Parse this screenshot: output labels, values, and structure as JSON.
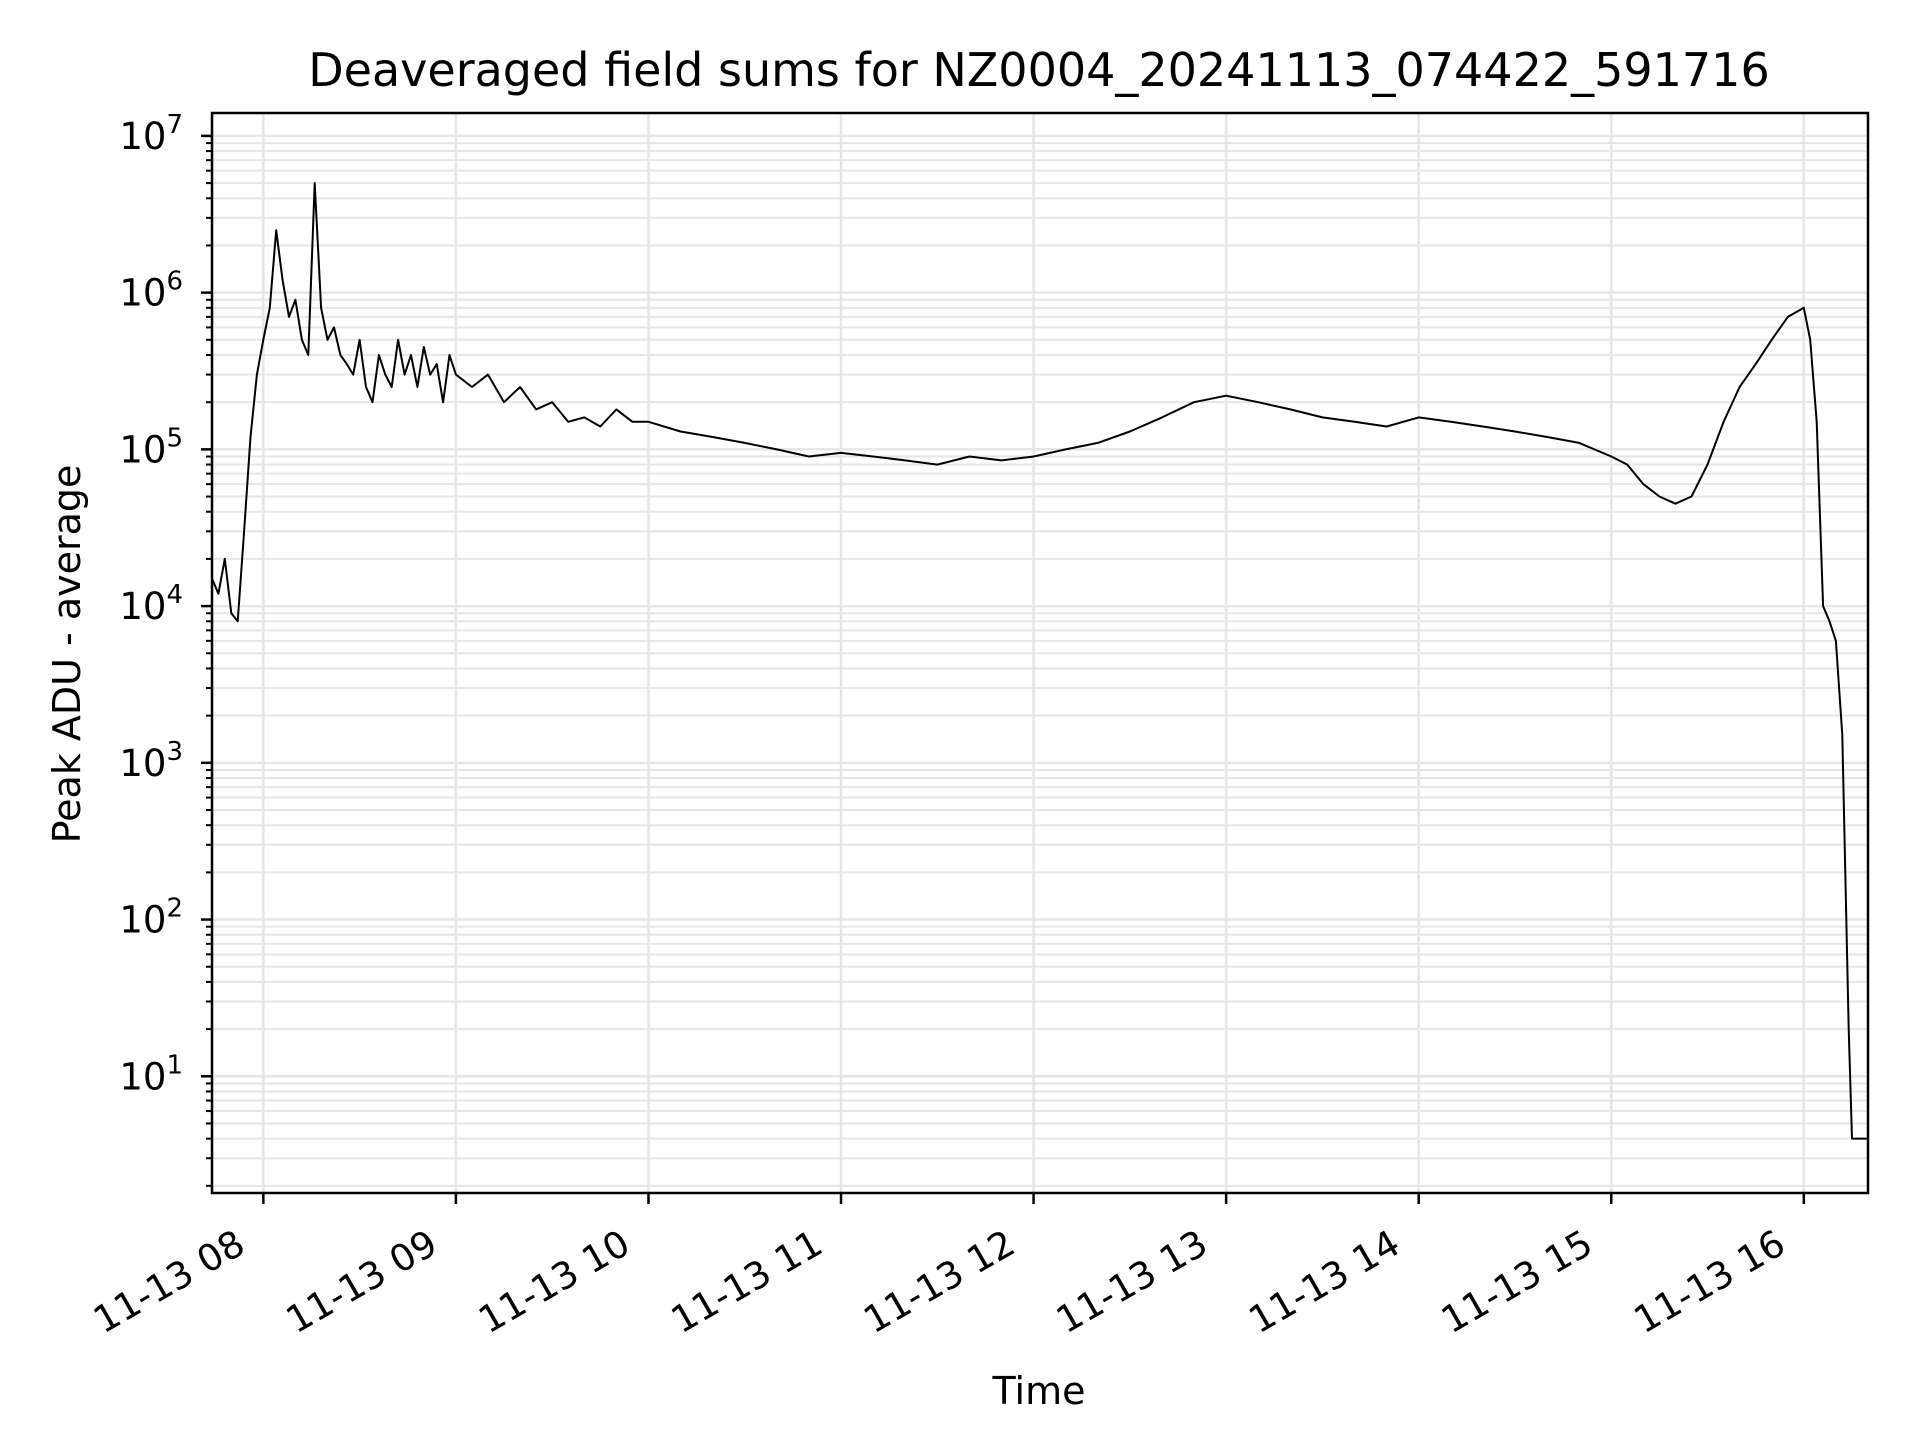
{
  "chart_data": {
    "type": "line",
    "title": "Deaveraged field sums for NZ0004_20241113_074422_591716",
    "xlabel": "Time",
    "ylabel": "Peak ADU - average",
    "yscale": "log",
    "ylim": [
      1.8,
      14000000
    ],
    "xlim": [
      "2024-11-13 07:44",
      "2024-11-13 16:20"
    ],
    "y_ticks": [
      {
        "value": 10,
        "base": "10",
        "exp": "1"
      },
      {
        "value": 100,
        "base": "10",
        "exp": "2"
      },
      {
        "value": 1000,
        "base": "10",
        "exp": "3"
      },
      {
        "value": 10000,
        "base": "10",
        "exp": "4"
      },
      {
        "value": 100000,
        "base": "10",
        "exp": "5"
      },
      {
        "value": 1000000,
        "base": "10",
        "exp": "6"
      },
      {
        "value": 10000000,
        "base": "10",
        "exp": "7"
      }
    ],
    "x_ticks": [
      {
        "value": "2024-11-13 08:00",
        "label": "11-13 08"
      },
      {
        "value": "2024-11-13 09:00",
        "label": "11-13 09"
      },
      {
        "value": "2024-11-13 10:00",
        "label": "11-13 10"
      },
      {
        "value": "2024-11-13 11:00",
        "label": "11-13 11"
      },
      {
        "value": "2024-11-13 12:00",
        "label": "11-13 12"
      },
      {
        "value": "2024-11-13 13:00",
        "label": "11-13 13"
      },
      {
        "value": "2024-11-13 14:00",
        "label": "11-13 14"
      },
      {
        "value": "2024-11-13 15:00",
        "label": "11-13 15"
      },
      {
        "value": "2024-11-13 16:00",
        "label": "11-13 16"
      }
    ],
    "grid": true,
    "legend": "none",
    "colors": {
      "line": "#000000",
      "grid": "#e6e6e6",
      "axes": "#000000"
    },
    "series": [
      {
        "x": [
          "2024-11-13 07:44",
          "2024-11-13 07:46",
          "2024-11-13 07:48",
          "2024-11-13 07:50",
          "2024-11-13 07:52",
          "2024-11-13 07:54",
          "2024-11-13 07:56",
          "2024-11-13 07:58",
          "2024-11-13 08:00",
          "2024-11-13 08:02",
          "2024-11-13 08:04",
          "2024-11-13 08:06",
          "2024-11-13 08:08",
          "2024-11-13 08:10",
          "2024-11-13 08:12",
          "2024-11-13 08:14",
          "2024-11-13 08:16",
          "2024-11-13 08:18",
          "2024-11-13 08:20",
          "2024-11-13 08:22",
          "2024-11-13 08:24",
          "2024-11-13 08:26",
          "2024-11-13 08:28",
          "2024-11-13 08:30",
          "2024-11-13 08:32",
          "2024-11-13 08:34",
          "2024-11-13 08:36",
          "2024-11-13 08:38",
          "2024-11-13 08:40",
          "2024-11-13 08:42",
          "2024-11-13 08:44",
          "2024-11-13 08:46",
          "2024-11-13 08:48",
          "2024-11-13 08:50",
          "2024-11-13 08:52",
          "2024-11-13 08:54",
          "2024-11-13 08:56",
          "2024-11-13 08:58",
          "2024-11-13 09:00",
          "2024-11-13 09:05",
          "2024-11-13 09:10",
          "2024-11-13 09:15",
          "2024-11-13 09:20",
          "2024-11-13 09:25",
          "2024-11-13 09:30",
          "2024-11-13 09:35",
          "2024-11-13 09:40",
          "2024-11-13 09:45",
          "2024-11-13 09:50",
          "2024-11-13 09:55",
          "2024-11-13 10:00",
          "2024-11-13 10:10",
          "2024-11-13 10:20",
          "2024-11-13 10:30",
          "2024-11-13 10:40",
          "2024-11-13 10:50",
          "2024-11-13 11:00",
          "2024-11-13 11:10",
          "2024-11-13 11:20",
          "2024-11-13 11:30",
          "2024-11-13 11:40",
          "2024-11-13 11:50",
          "2024-11-13 12:00",
          "2024-11-13 12:10",
          "2024-11-13 12:20",
          "2024-11-13 12:30",
          "2024-11-13 12:40",
          "2024-11-13 12:50",
          "2024-11-13 13:00",
          "2024-11-13 13:10",
          "2024-11-13 13:20",
          "2024-11-13 13:30",
          "2024-11-13 13:40",
          "2024-11-13 13:50",
          "2024-11-13 14:00",
          "2024-11-13 14:10",
          "2024-11-13 14:20",
          "2024-11-13 14:30",
          "2024-11-13 14:40",
          "2024-11-13 14:50",
          "2024-11-13 15:00",
          "2024-11-13 15:05",
          "2024-11-13 15:10",
          "2024-11-13 15:15",
          "2024-11-13 15:20",
          "2024-11-13 15:25",
          "2024-11-13 15:30",
          "2024-11-13 15:35",
          "2024-11-13 15:40",
          "2024-11-13 15:45",
          "2024-11-13 15:50",
          "2024-11-13 15:55",
          "2024-11-13 16:00",
          "2024-11-13 16:02",
          "2024-11-13 16:04",
          "2024-11-13 16:06",
          "2024-11-13 16:08",
          "2024-11-13 16:10",
          "2024-11-13 16:12",
          "2024-11-13 16:14",
          "2024-11-13 16:15",
          "2024-11-13 16:16",
          "2024-11-13 16:18",
          "2024-11-13 16:20"
        ],
        "y": [
          15000,
          12000,
          20000,
          9000,
          8000,
          30000,
          120000,
          300000,
          500000,
          800000,
          2500000,
          1200000,
          700000,
          900000,
          500000,
          400000,
          5000000,
          800000,
          500000,
          600000,
          400000,
          350000,
          300000,
          500000,
          250000,
          200000,
          400000,
          300000,
          250000,
          500000,
          300000,
          400000,
          250000,
          450000,
          300000,
          350000,
          200000,
          400000,
          300000,
          250000,
          300000,
          200000,
          250000,
          180000,
          200000,
          150000,
          160000,
          140000,
          180000,
          150000,
          150000,
          130000,
          120000,
          110000,
          100000,
          90000,
          95000,
          90000,
          85000,
          80000,
          90000,
          85000,
          90000,
          100000,
          110000,
          130000,
          160000,
          200000,
          220000,
          200000,
          180000,
          160000,
          150000,
          140000,
          160000,
          150000,
          140000,
          130000,
          120000,
          110000,
          90000,
          80000,
          60000,
          50000,
          45000,
          50000,
          80000,
          150000,
          250000,
          350000,
          500000,
          700000,
          800000,
          500000,
          150000,
          10000,
          8000,
          6000,
          1500,
          20,
          4,
          4,
          4,
          4
        ]
      }
    ]
  }
}
